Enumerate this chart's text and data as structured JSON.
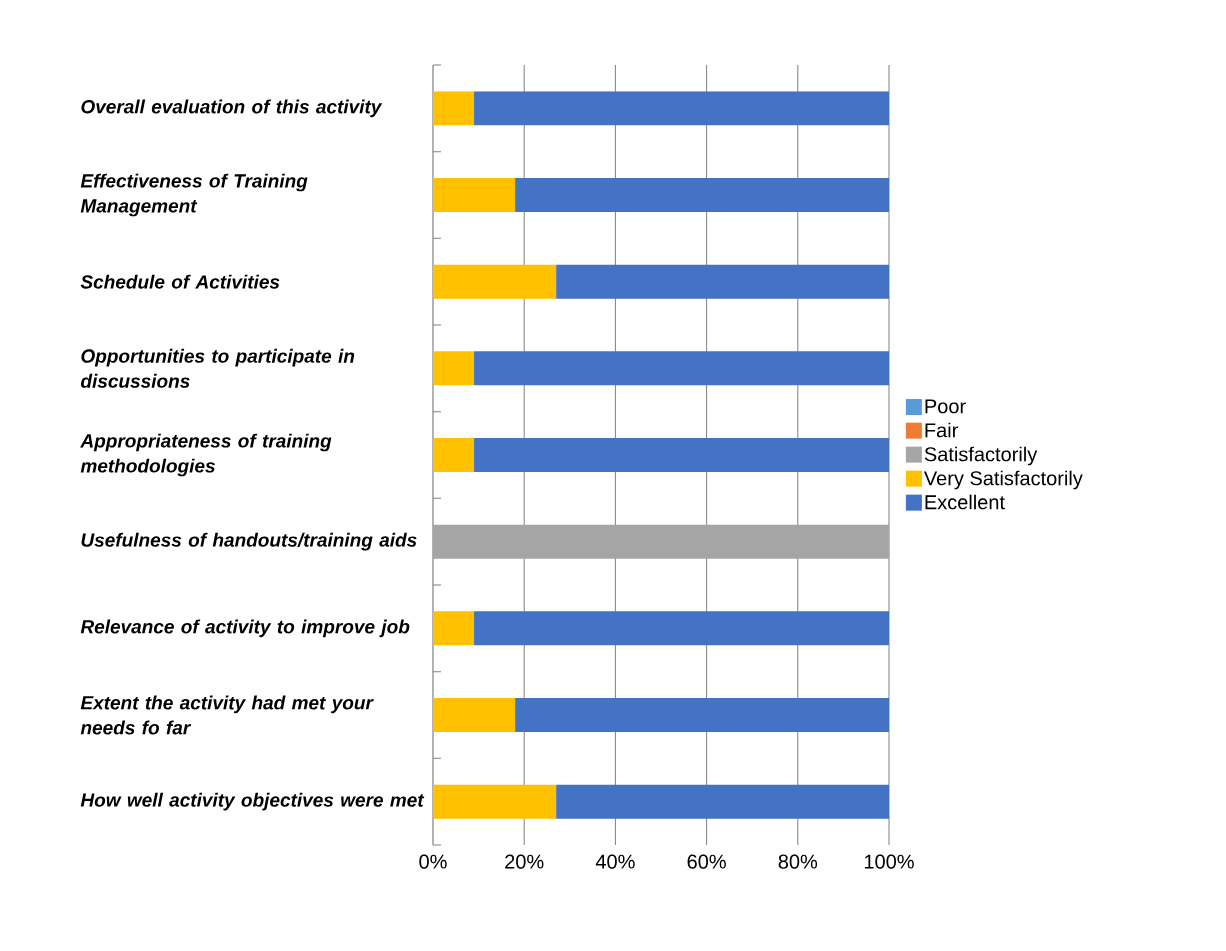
{
  "chart_data": {
    "type": "bar",
    "orientation": "horizontal",
    "stacked": true,
    "categories": [
      "Overall evaluation of this activity",
      "Effectiveness of Training Management",
      "Schedule of Activities",
      "Opportunities to participate in discussions",
      "Appropriateness of training methodologies",
      "Usefulness of handouts/training aids",
      "Relevance of activity to improve job",
      "Extent the activity had met your needs fo far",
      "How well activity objectives were met"
    ],
    "series": [
      {
        "name": "Poor",
        "color": "#5b9bd5",
        "values": [
          0,
          0,
          0,
          0,
          0,
          0,
          0,
          0,
          0
        ]
      },
      {
        "name": "Fair",
        "color": "#ed7d31",
        "values": [
          0,
          0,
          0,
          0,
          0,
          0,
          0,
          0,
          0
        ]
      },
      {
        "name": "Satisfactorily",
        "color": "#a5a5a5",
        "values": [
          0,
          0,
          0,
          0,
          0,
          100,
          0,
          0,
          0
        ]
      },
      {
        "name": "Very Satisfactorily",
        "color": "#ffc000",
        "values": [
          9,
          18,
          27,
          9,
          9,
          0,
          9,
          18,
          27
        ]
      },
      {
        "name": "Excellent",
        "color": "#4472c4",
        "values": [
          91,
          82,
          73,
          91,
          91,
          0,
          91,
          82,
          73
        ]
      }
    ],
    "xlim": [
      0,
      100
    ],
    "xticks": [
      {
        "value": 0,
        "label": "0%"
      },
      {
        "value": 20,
        "label": "20%"
      },
      {
        "value": 40,
        "label": "40%"
      },
      {
        "value": 60,
        "label": "60%"
      },
      {
        "value": 80,
        "label": "80%"
      },
      {
        "value": 100,
        "label": "100%"
      }
    ],
    "grid": "x",
    "legend": "right"
  }
}
